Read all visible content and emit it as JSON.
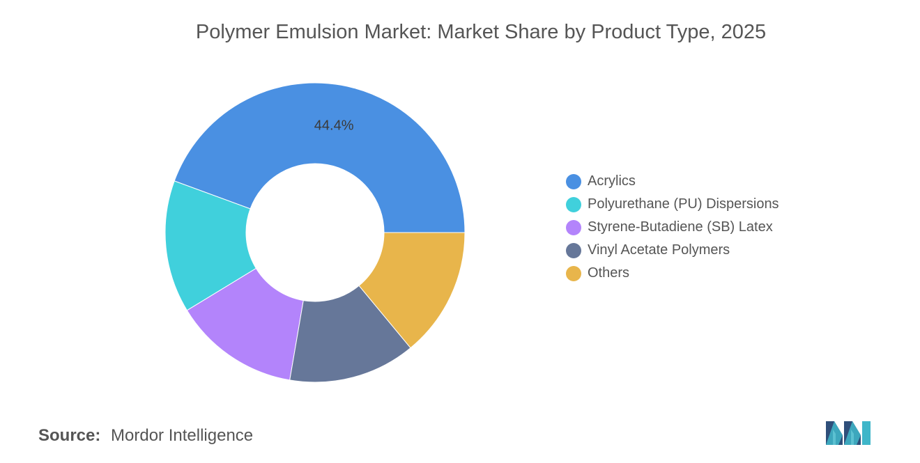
{
  "title": "Polymer Emulsion Market: Market Share by Product Type, 2025",
  "source": {
    "label": "Source:",
    "value": "Mordor Intelligence"
  },
  "chart_data": {
    "type": "pie",
    "style": "donut",
    "title": "Polymer Emulsion Market: Market Share by Product Type, 2025",
    "unit": "%",
    "legend_position": "right",
    "categories": [
      "Acrylics",
      "Polyurethane (PU) Dispersions",
      "Styrene-Butadiene (SB) Latex",
      "Vinyl Acetate Polymers",
      "Others"
    ],
    "values": [
      44.4,
      14.3,
      13.6,
      13.7,
      14.0
    ],
    "colors": [
      "#4a90e2",
      "#40d0dc",
      "#b384fb",
      "#667799",
      "#e8b54b"
    ],
    "data_labels": [
      {
        "category": "Acrylics",
        "text": "44.4%"
      }
    ]
  }
}
